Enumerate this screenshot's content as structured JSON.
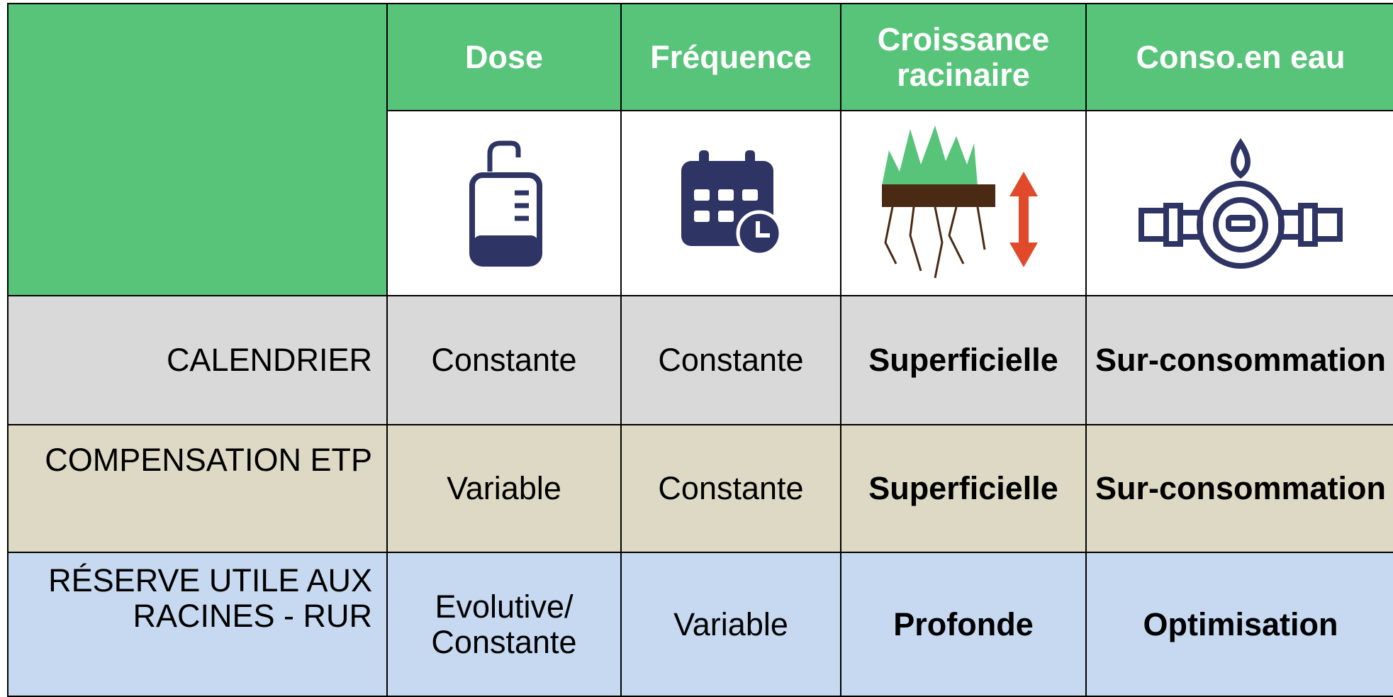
{
  "table": {
    "header": [
      "Dose",
      "Fréquence",
      "Croissance racinaire",
      "Conso.en eau"
    ],
    "rows": [
      [
        "CALENDRIER",
        "Constante",
        "Constante",
        "Superficielle",
        "Sur-consommation"
      ],
      [
        "COMPENSATION ETP",
        "Variable",
        "Constante",
        "Superficielle",
        "Sur-consommation"
      ],
      [
        "RÉSERVE UTILE AUX RACINES - RUR",
        "Evolutive/ Constante",
        "Variable",
        "Profonde",
        "Optimisation"
      ]
    ]
  }
}
